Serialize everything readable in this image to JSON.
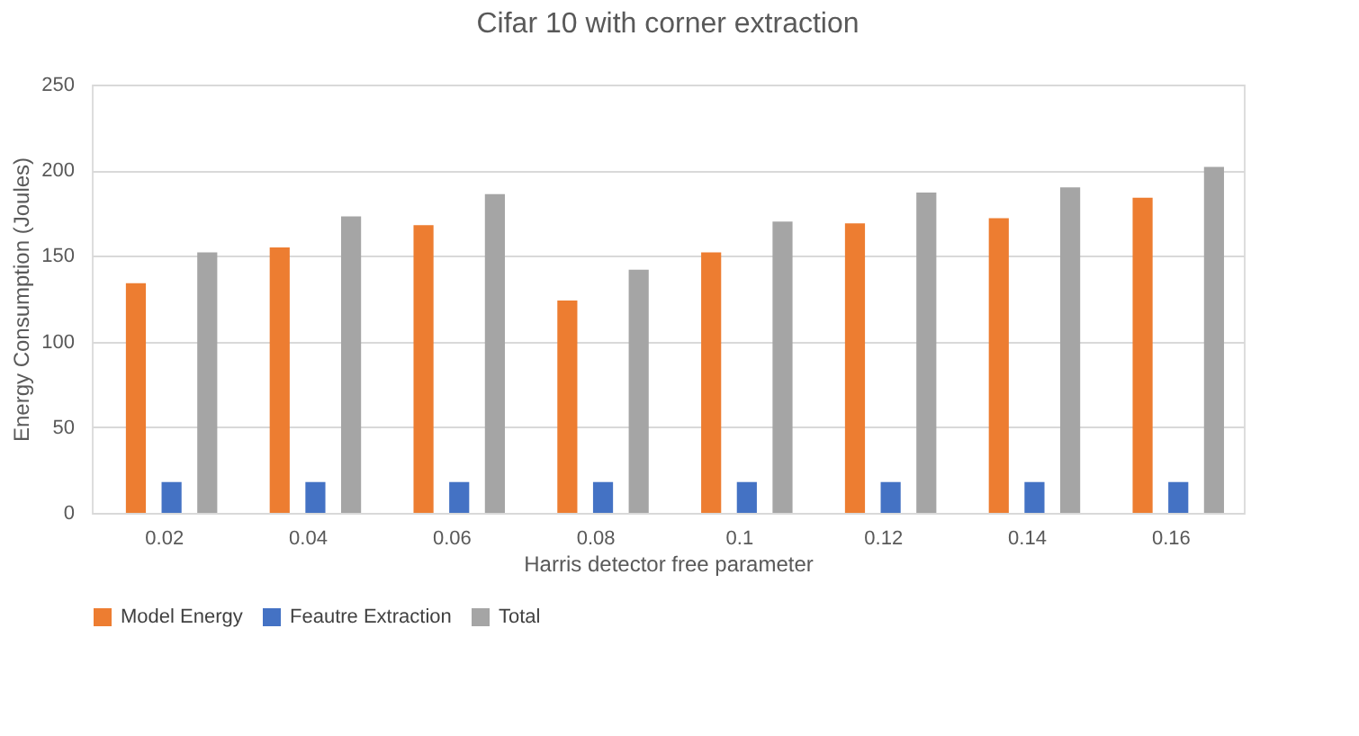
{
  "chart_data": {
    "type": "bar",
    "title": "Cifar 10 with corner extraction",
    "xlabel": "Harris detector free parameter",
    "ylabel": "Energy Consumption (Joules)",
    "categories": [
      "0.02",
      "0.04",
      "0.06",
      "0.08",
      "0.1",
      "0.12",
      "0.14",
      "0.16"
    ],
    "series": [
      {
        "name": "Model Energy",
        "color": "#ed7d31",
        "values": [
          134,
          155,
          168,
          124,
          152,
          169,
          172,
          184
        ]
      },
      {
        "name": "Feautre Extraction",
        "color": "#4472c4",
        "values": [
          18,
          18,
          18,
          18,
          18,
          18,
          18,
          18
        ]
      },
      {
        "name": "Total",
        "color": "#a5a5a5",
        "values": [
          152,
          173,
          186,
          142,
          170,
          187,
          190,
          202
        ]
      }
    ],
    "ylim": [
      0,
      250
    ],
    "yticks": [
      0,
      50,
      100,
      150,
      200,
      250
    ],
    "grid": "y",
    "legend": "bottom"
  }
}
